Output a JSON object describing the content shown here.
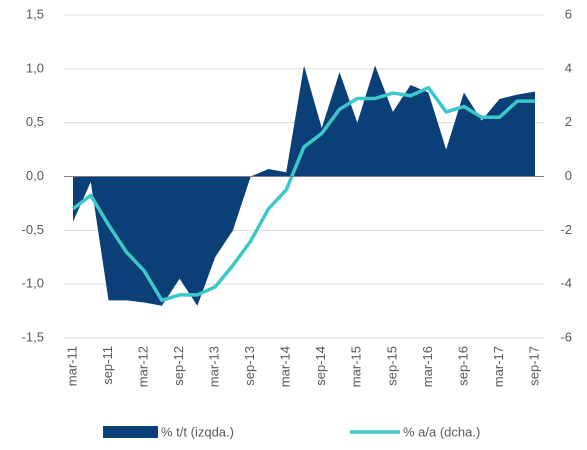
{
  "chart_data": {
    "type": "area_line",
    "categories": [
      "mar-11",
      null,
      "sep-11",
      null,
      "mar-12",
      null,
      "sep-12",
      null,
      "mar-13",
      null,
      "sep-13",
      null,
      "mar-14",
      null,
      "sep-14",
      null,
      "mar-15",
      null,
      "sep-15",
      null,
      "mar-16",
      null,
      "sep-16",
      null,
      "mar-17",
      null,
      "sep-17"
    ],
    "series": [
      {
        "name": "% t/t (izqda.)",
        "color": "#0b3f77",
        "type": "area",
        "values": [
          -0.42,
          -0.05,
          -1.15,
          -1.15,
          -1.17,
          -1.2,
          -0.95,
          -1.2,
          -0.75,
          -0.5,
          0.0,
          0.07,
          0.04,
          1.03,
          0.45,
          0.97,
          0.5,
          1.03,
          0.6,
          0.85,
          0.78,
          0.25,
          0.78,
          0.52,
          0.72,
          0.76,
          0.79
        ]
      },
      {
        "name": "% a/a (dcha.)",
        "color": "#3cc8c8",
        "type": "line",
        "axis": "y2",
        "values": [
          -1.2,
          -0.7,
          -1.8,
          -2.8,
          -3.5,
          -4.6,
          -4.4,
          -4.4,
          -4.1,
          -3.3,
          -2.4,
          -1.2,
          -0.5,
          1.1,
          1.6,
          2.5,
          2.9,
          2.9,
          3.1,
          3.0,
          3.3,
          2.4,
          2.6,
          2.2,
          2.2,
          2.8,
          2.8
        ]
      }
    ],
    "ylim": [
      -1.5,
      1.5
    ],
    "yticks": [
      {
        "value": -1.5,
        "label": "-1,5"
      },
      {
        "value": -1,
        "label": "-1,0"
      },
      {
        "value": -0.5,
        "label": "-0,5"
      },
      {
        "value": 0,
        "label": "0,0"
      },
      {
        "value": 0.5,
        "label": "0,5"
      },
      {
        "value": 1,
        "label": "1,0"
      },
      {
        "value": 1.5,
        "label": "1,5"
      }
    ],
    "y2lim": [
      -6,
      6
    ],
    "y2ticks": [
      -6,
      -4,
      -2,
      0,
      2,
      4,
      6
    ],
    "grid": true,
    "legend": "bottom"
  }
}
